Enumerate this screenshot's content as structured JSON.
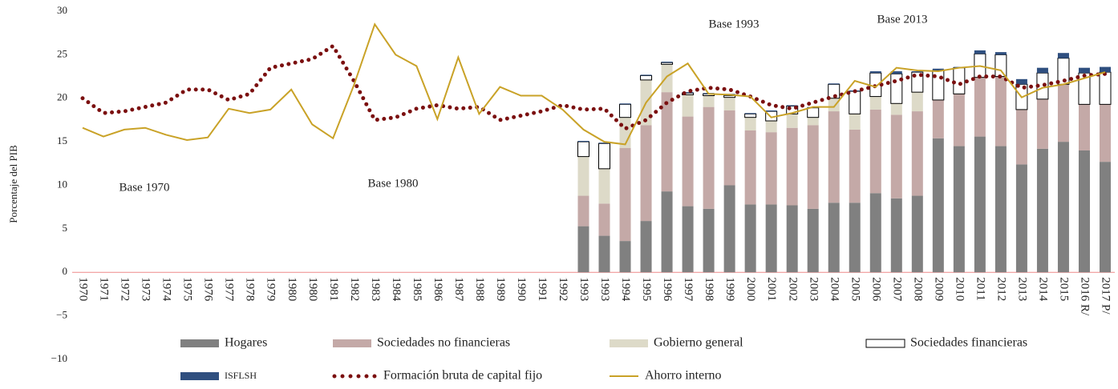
{
  "chart_data": {
    "type": "combo",
    "ylabel": "Porcentaje del PIB",
    "annotations": [
      "Base 1970",
      "Base 1980",
      "Base 1993",
      "Base 2013"
    ],
    "categories": [
      "1970",
      "1971",
      "1972",
      "1973",
      "1974",
      "1975",
      "1976",
      "1977",
      "1978",
      "1979",
      "1980",
      "1980",
      "1981",
      "1982",
      "1983",
      "1984",
      "1985",
      "1986",
      "1987",
      "1988",
      "1989",
      "1990",
      "1991",
      "1992",
      "1993",
      "1993",
      "1994",
      "1995",
      "1996",
      "1997",
      "1998",
      "1999",
      "2000",
      "2001",
      "2002",
      "2003",
      "2004",
      "2005",
      "2006",
      "2007",
      "2008",
      "2009",
      "2010",
      "2011",
      "2012",
      "2013",
      "2014",
      "2015",
      "2016 R/",
      "2017 P/"
    ],
    "ylim": [
      -10,
      30
    ],
    "yticks": [
      {
        "value": -10,
        "label": "−10"
      },
      {
        "value": -5,
        "label": "−5"
      },
      0,
      5,
      10,
      15,
      20,
      25,
      30
    ],
    "series": [
      {
        "name": "Hogares",
        "type": "bar",
        "color": "#808080",
        "values": [
          null,
          null,
          null,
          null,
          null,
          null,
          null,
          null,
          null,
          null,
          null,
          null,
          null,
          null,
          null,
          null,
          null,
          null,
          null,
          null,
          null,
          null,
          null,
          null,
          5.3,
          4.2,
          3.6,
          5.9,
          9.3,
          7.6,
          7.3,
          10,
          7.8,
          7.8,
          7.7,
          7.3,
          8,
          8,
          9.1,
          8.5,
          8.8,
          15.4,
          14.5,
          15.6,
          14.5,
          12.4,
          14.2,
          15,
          14,
          12.7
        ]
      },
      {
        "name": "Sociedades no financieras",
        "type": "bar",
        "color": "#c4a9a7",
        "values": [
          null,
          null,
          null,
          null,
          null,
          null,
          null,
          null,
          null,
          null,
          null,
          null,
          null,
          null,
          null,
          null,
          null,
          null,
          null,
          null,
          null,
          null,
          null,
          null,
          3.5,
          3.7,
          10.7,
          11,
          11.4,
          10.3,
          11.7,
          8.6,
          8.5,
          8.3,
          8.9,
          9.6,
          10.5,
          8.4,
          9.6,
          9.6,
          9.7,
          4.4,
          6,
          6.8,
          8,
          6.3,
          5.7,
          6.6,
          5.3,
          6.6
        ]
      },
      {
        "name": "Gobierno general",
        "type": "bar",
        "color": "#dddac8",
        "values": [
          null,
          null,
          null,
          null,
          null,
          null,
          null,
          null,
          null,
          null,
          null,
          null,
          null,
          null,
          null,
          null,
          null,
          null,
          null,
          null,
          null,
          null,
          null,
          null,
          4.5,
          4,
          3.5,
          5.2,
          3.2,
          2.5,
          1.3,
          1.5,
          1.5,
          1.3,
          1.6,
          0.9,
          1.5,
          1.8,
          1.5,
          1.3,
          2.2,
          0,
          0,
          0,
          0,
          0,
          0,
          0,
          0,
          0
        ]
      },
      {
        "name": "Sociedades financieras",
        "type": "bar",
        "color": "#ffffff",
        "values": [
          null,
          null,
          null,
          null,
          null,
          null,
          null,
          null,
          null,
          null,
          null,
          null,
          null,
          null,
          null,
          null,
          null,
          null,
          null,
          null,
          null,
          null,
          null,
          null,
          1.7,
          2.9,
          1.5,
          0.5,
          0.2,
          0.2,
          0.2,
          0.2,
          0.4,
          1.1,
          0.9,
          1.1,
          1.6,
          2.6,
          2.7,
          3.4,
          2.3,
          3.4,
          3,
          2.7,
          2.5,
          2.9,
          3,
          3,
          3.6,
          3.7
        ]
      },
      {
        "name": "ISFLSH",
        "type": "bar",
        "color": "#2f4f7f",
        "values": [
          null,
          null,
          null,
          null,
          null,
          null,
          null,
          null,
          null,
          null,
          null,
          null,
          null,
          null,
          null,
          null,
          null,
          null,
          null,
          null,
          null,
          null,
          null,
          null,
          0.1,
          0.1,
          0.1,
          0.1,
          0.1,
          0.1,
          0.1,
          0.2,
          0.1,
          0.1,
          0.1,
          0.1,
          0.1,
          0.1,
          0.2,
          0.3,
          0.1,
          0.2,
          0.1,
          0.4,
          0.3,
          0.6,
          0.6,
          0.6,
          0.6,
          0.6
        ]
      },
      {
        "name": "Formación bruta de capital fijo",
        "type": "dots",
        "color": "#7b1010",
        "values": [
          20,
          18.3,
          18.5,
          19,
          19.5,
          21,
          21,
          19.8,
          20.5,
          23.5,
          24,
          24.5,
          26,
          22,
          17.5,
          17.8,
          18.8,
          19.2,
          18.8,
          19,
          17.5,
          18,
          18.5,
          19.2,
          18.7,
          18.8,
          16.5,
          17.5,
          19.5,
          20.8,
          21.2,
          21,
          20.2,
          19.2,
          18.8,
          19.5,
          20.2,
          20.8,
          21.4,
          22,
          22.7,
          22.5,
          21.6,
          22.5,
          22.5,
          21.2,
          21.5,
          22,
          22.6,
          22.8
        ]
      },
      {
        "name": "Ahorro interno",
        "type": "line",
        "color": "#c9a227",
        "values": [
          16.6,
          15.6,
          16.4,
          16.6,
          15.8,
          15.2,
          15.5,
          18.8,
          18.3,
          18.7,
          21,
          17,
          15.4,
          21.5,
          28.5,
          25,
          23.7,
          17.6,
          24.7,
          18.2,
          21.3,
          20.3,
          20.3,
          18.7,
          16.4,
          15,
          14.7,
          19.5,
          22.5,
          24,
          20.5,
          20.4,
          20.2,
          17.8,
          18.3,
          19,
          19,
          22,
          21.3,
          23.5,
          23.2,
          23.1,
          23.5,
          23.7,
          23.2,
          20.1,
          21.2,
          21.6,
          22.3,
          23
        ]
      }
    ]
  }
}
